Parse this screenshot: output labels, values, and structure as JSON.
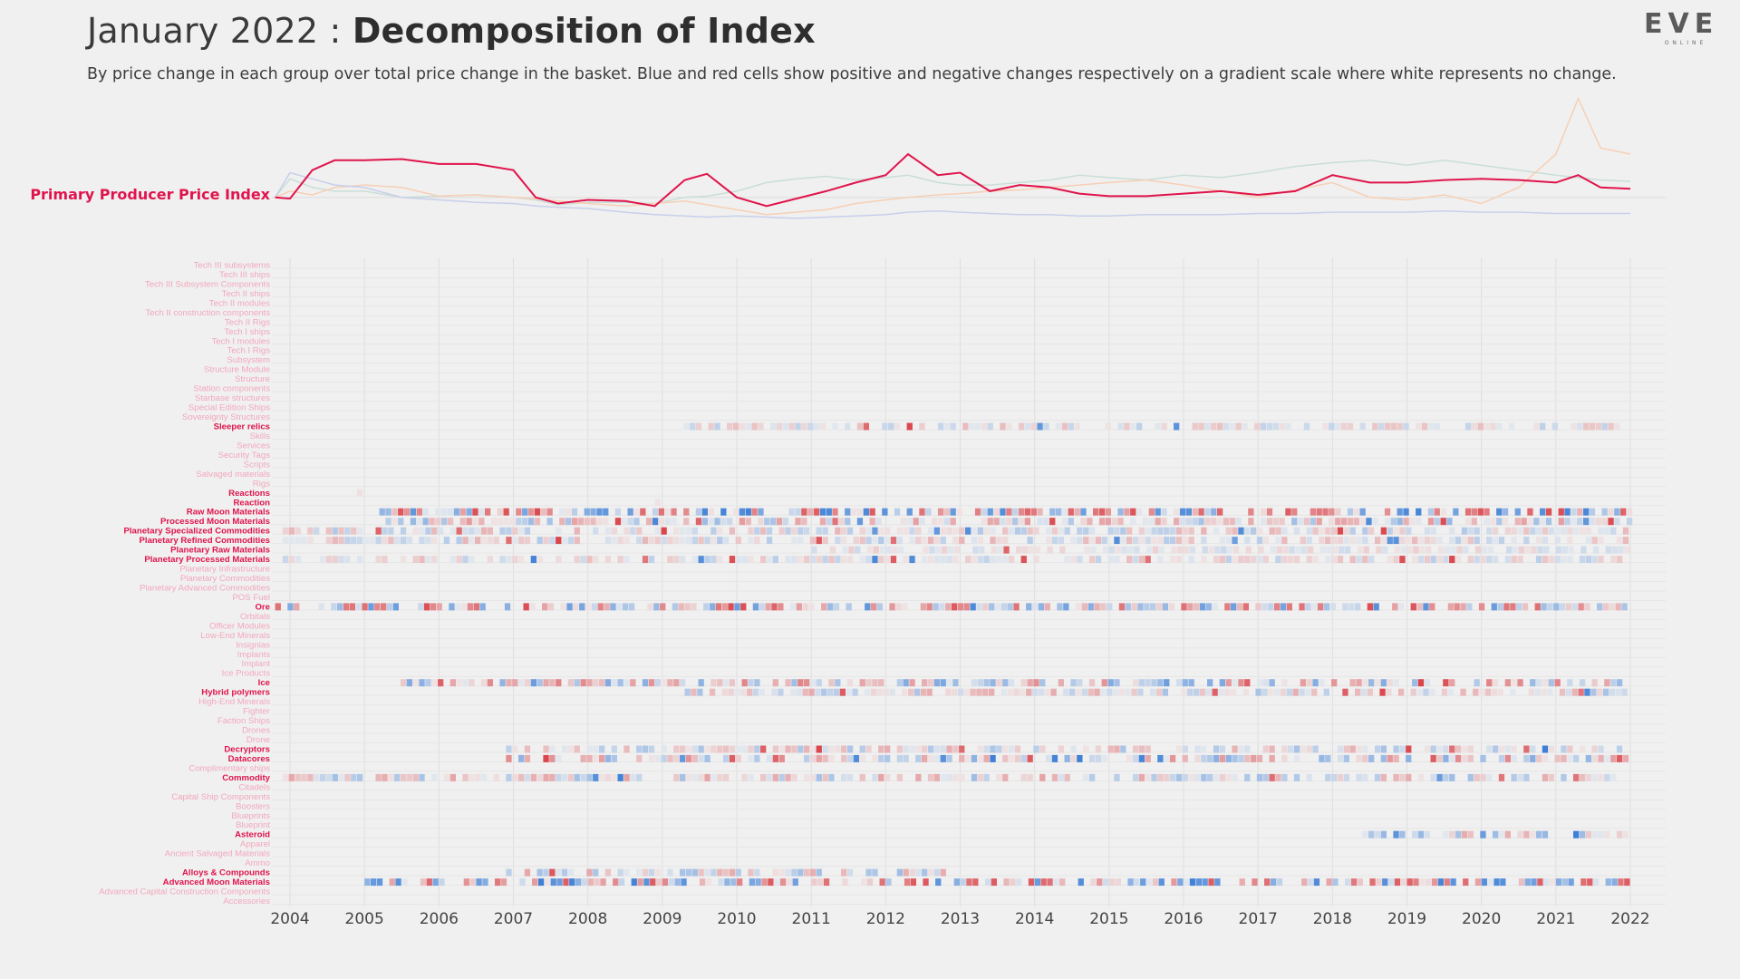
{
  "header": {
    "title_prefix": "January 2022 : ",
    "title_bold": "Decomposition of Index",
    "subtitle": "By price change in each group over total price change in the basket. Blue and red cells show positive and negative changes respectively on a gradient scale where white represents no change."
  },
  "logo": {
    "text": "EVE",
    "sub": "ONLINE"
  },
  "colors": {
    "highlight": "#e0144c",
    "faded": "#f2a7bd",
    "blue": "#3d7fd6",
    "red": "#d9444a",
    "grid": "#dedede"
  },
  "chart_data": [
    {
      "type": "line",
      "label": "Primary Producer Price Index",
      "x": [
        2003.8,
        2004.0,
        2004.3,
        2004.6,
        2005.0,
        2005.5,
        2006.0,
        2006.5,
        2007.0,
        2007.3,
        2007.6,
        2008.0,
        2008.5,
        2008.9,
        2009.3,
        2009.6,
        2010.0,
        2010.4,
        2010.8,
        2011.2,
        2011.6,
        2012.0,
        2012.3,
        2012.7,
        2013.0,
        2013.4,
        2013.8,
        2014.2,
        2014.6,
        2015.0,
        2015.5,
        2016.0,
        2016.5,
        2017.0,
        2017.5,
        2018.0,
        2018.5,
        2019.0,
        2019.5,
        2020.0,
        2020.5,
        2021.0,
        2021.3,
        2021.6,
        2022.0
      ],
      "series": [
        {
          "name": "Primary Producer Price Index",
          "highlight": true,
          "values": [
            1.0,
            0.99,
            1.22,
            1.3,
            1.3,
            1.31,
            1.27,
            1.27,
            1.22,
            1.0,
            0.95,
            0.98,
            0.97,
            0.93,
            1.14,
            1.19,
            1.0,
            0.93,
            0.99,
            1.05,
            1.12,
            1.18,
            1.35,
            1.18,
            1.2,
            1.05,
            1.1,
            1.08,
            1.03,
            1.01,
            1.01,
            1.03,
            1.05,
            1.02,
            1.05,
            1.18,
            1.12,
            1.12,
            1.14,
            1.15,
            1.14,
            1.12,
            1.18,
            1.08,
            1.07
          ]
        },
        {
          "name": "",
          "values": [
            1.0,
            1.15,
            1.08,
            1.05,
            1.05,
            1.0,
            1.01,
            1.02,
            1.0,
            0.98,
            0.94,
            0.96,
            0.96,
            0.95,
            1.0,
            1.01,
            1.05,
            1.12,
            1.15,
            1.17,
            1.14,
            1.16,
            1.18,
            1.12,
            1.1,
            1.1,
            1.12,
            1.14,
            1.18,
            1.16,
            1.14,
            1.18,
            1.16,
            1.2,
            1.25,
            1.28,
            1.3,
            1.26,
            1.3,
            1.26,
            1.22,
            1.18,
            1.16,
            1.14,
            1.13
          ]
        },
        {
          "name": "",
          "values": [
            1.0,
            1.05,
            1.02,
            1.08,
            1.1,
            1.08,
            1.01,
            1.02,
            1.0,
            0.99,
            0.97,
            0.95,
            0.93,
            0.95,
            0.97,
            0.94,
            0.9,
            0.86,
            0.88,
            0.9,
            0.95,
            0.98,
            1.0,
            1.02,
            1.03,
            1.05,
            1.06,
            1.08,
            1.1,
            1.12,
            1.14,
            1.1,
            1.05,
            1.0,
            1.06,
            1.12,
            1.0,
            0.98,
            1.02,
            0.95,
            1.08,
            1.35,
            1.8,
            1.4,
            1.35
          ]
        },
        {
          "name": "",
          "values": [
            1.0,
            1.2,
            1.15,
            1.1,
            1.08,
            1.0,
            0.98,
            0.96,
            0.95,
            0.93,
            0.92,
            0.91,
            0.88,
            0.86,
            0.85,
            0.84,
            0.85,
            0.84,
            0.83,
            0.84,
            0.85,
            0.86,
            0.88,
            0.89,
            0.88,
            0.87,
            0.86,
            0.86,
            0.85,
            0.85,
            0.86,
            0.86,
            0.86,
            0.87,
            0.87,
            0.88,
            0.88,
            0.88,
            0.89,
            0.88,
            0.88,
            0.87,
            0.87,
            0.87,
            0.87
          ]
        }
      ],
      "ylim": [
        0.8,
        1.9
      ]
    },
    {
      "type": "heatmap",
      "x_ticks": [
        "2004",
        "2005",
        "2006",
        "2007",
        "2008",
        "2009",
        "2010",
        "2011",
        "2012",
        "2013",
        "2014",
        "2015",
        "2016",
        "2017",
        "2018",
        "2019",
        "2020",
        "2021",
        "2022"
      ],
      "xlim": [
        2003.8,
        2022.0
      ],
      "rows": [
        {
          "name": "Tech III subsystems",
          "active": false
        },
        {
          "name": "Tech III ships",
          "active": false
        },
        {
          "name": "Tech III Subsystem Components",
          "active": false
        },
        {
          "name": "Tech II ships",
          "active": false
        },
        {
          "name": "Tech II modules",
          "active": false
        },
        {
          "name": "Tech II construction components",
          "active": false
        },
        {
          "name": "Tech II Rigs",
          "active": false
        },
        {
          "name": "Tech I ships",
          "active": false
        },
        {
          "name": "Tech I modules",
          "active": false
        },
        {
          "name": "Tech I Rigs",
          "active": false
        },
        {
          "name": "Subsystem",
          "active": false
        },
        {
          "name": "Structure Module",
          "active": false
        },
        {
          "name": "Structure",
          "active": false
        },
        {
          "name": "Station components",
          "active": false
        },
        {
          "name": "Starbase structures",
          "active": false
        },
        {
          "name": "Special Edition Ships",
          "active": false
        },
        {
          "name": "Sovereignty Structures",
          "active": false
        },
        {
          "name": "Sleeper relics",
          "active": true,
          "start": 2009.2,
          "end": 2022.0,
          "intensity": 0.3
        },
        {
          "name": "Skills",
          "active": false
        },
        {
          "name": "Services",
          "active": false
        },
        {
          "name": "Security Tags",
          "active": false
        },
        {
          "name": "Scripts",
          "active": false
        },
        {
          "name": "Salvaged materials",
          "active": false
        },
        {
          "name": "Rigs",
          "active": false
        },
        {
          "name": "Reactions",
          "active": true,
          "start": 2004.9,
          "end": 2005.0,
          "intensity": 0.15
        },
        {
          "name": "Reaction",
          "active": true,
          "start": 2008.9,
          "end": 2009.0,
          "intensity": 0.15
        },
        {
          "name": "Raw Moon Materials",
          "active": true,
          "start": 2005.2,
          "end": 2022.0,
          "intensity": 0.95
        },
        {
          "name": "Processed Moon Materials",
          "active": true,
          "start": 2005.2,
          "end": 2022.0,
          "intensity": 0.5
        },
        {
          "name": "Planetary Specialized Commodities",
          "active": true,
          "start": 2003.9,
          "end": 2022.0,
          "intensity": 0.35
        },
        {
          "name": "Planetary Refined Commodities",
          "active": true,
          "start": 2003.9,
          "end": 2022.0,
          "intensity": 0.35
        },
        {
          "name": "Planetary Raw Materials",
          "active": true,
          "start": 2011.0,
          "end": 2022.0,
          "intensity": 0.2
        },
        {
          "name": "Planetary Processed Materials",
          "active": true,
          "start": 2003.9,
          "end": 2022.0,
          "intensity": 0.3
        },
        {
          "name": "Planetary Infrastructure",
          "active": false
        },
        {
          "name": "Planetary Commodities",
          "active": false
        },
        {
          "name": "Planetary Advanced Commodities",
          "active": false
        },
        {
          "name": "POS Fuel",
          "active": false
        },
        {
          "name": "Ore",
          "active": true,
          "start": 2003.8,
          "end": 2022.0,
          "intensity": 0.75
        },
        {
          "name": "Orbitals",
          "active": false
        },
        {
          "name": "Officer Modules",
          "active": false
        },
        {
          "name": "Low-End Minerals",
          "active": false
        },
        {
          "name": "Insignias",
          "active": false
        },
        {
          "name": "Implants",
          "active": false
        },
        {
          "name": "Implant",
          "active": false
        },
        {
          "name": "Ice Products",
          "active": false
        },
        {
          "name": "Ice",
          "active": true,
          "start": 2005.4,
          "end": 2022.0,
          "intensity": 0.65
        },
        {
          "name": "Hybrid polymers",
          "active": true,
          "start": 2009.3,
          "end": 2022.0,
          "intensity": 0.4
        },
        {
          "name": "High-End Minerals",
          "active": false
        },
        {
          "name": "Fighter",
          "active": false
        },
        {
          "name": "Faction Ships",
          "active": false
        },
        {
          "name": "Drones",
          "active": false
        },
        {
          "name": "Drone",
          "active": false
        },
        {
          "name": "Decryptors",
          "active": true,
          "start": 2006.9,
          "end": 2022.0,
          "intensity": 0.4
        },
        {
          "name": "Datacores",
          "active": true,
          "start": 2006.9,
          "end": 2022.0,
          "intensity": 0.6
        },
        {
          "name": "Complimentary ships",
          "active": false
        },
        {
          "name": "Commodity",
          "active": true,
          "start": 2003.9,
          "end": 2022.0,
          "intensity": 0.45
        },
        {
          "name": "Citadels",
          "active": false
        },
        {
          "name": "Capital Ship Components",
          "active": false
        },
        {
          "name": "Boosters",
          "active": false
        },
        {
          "name": "Blueprints",
          "active": false
        },
        {
          "name": "Blueprint",
          "active": false
        },
        {
          "name": "Asteroid",
          "active": true,
          "start": 2018.4,
          "end": 2022.0,
          "intensity": 0.5
        },
        {
          "name": "Apparel",
          "active": false
        },
        {
          "name": "Ancient Salvaged Materials",
          "active": false
        },
        {
          "name": "Ammo",
          "active": false
        },
        {
          "name": "Alloys & Compounds",
          "active": true,
          "start": 2006.9,
          "end": 2012.8,
          "intensity": 0.45
        },
        {
          "name": "Advanced Moon Materials",
          "active": true,
          "start": 2005.0,
          "end": 2022.0,
          "intensity": 0.9
        },
        {
          "name": "Advanced Capital Construction Components",
          "active": false
        },
        {
          "name": "Accessories",
          "active": false
        }
      ]
    }
  ]
}
